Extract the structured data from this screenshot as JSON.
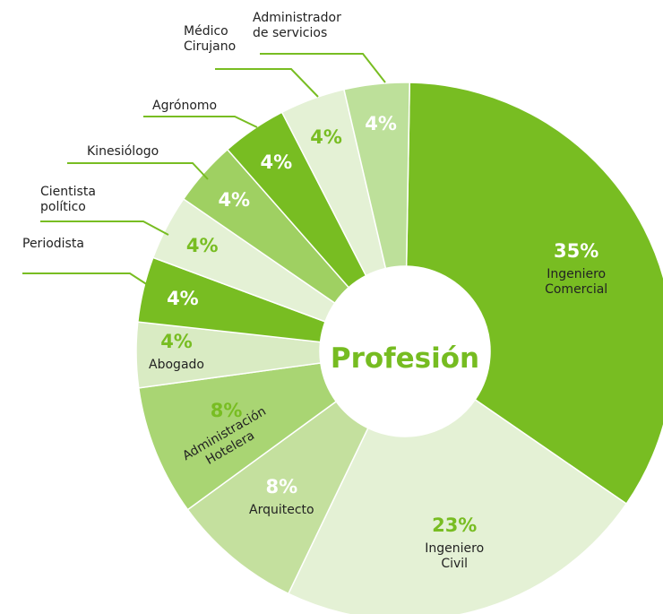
{
  "chart_data": {
    "type": "pie",
    "title": "Profesión",
    "categories": [
      "Ingeniero Comercial",
      "Ingeniero Civil",
      "Arquitecto",
      "Administración Hotelera",
      "Abogado",
      "Periodista",
      "Cientista político",
      "Kinesiólogo",
      "Agrónomo",
      "Médico Cirujano",
      "Administrador de servicios"
    ],
    "values": [
      35,
      23,
      8,
      8,
      4,
      4,
      4,
      4,
      4,
      4,
      4
    ],
    "value_labels": [
      "35%",
      "23%",
      "8%",
      "8%",
      "4%",
      "4%",
      "4%",
      "4%",
      "4%",
      "4%",
      "4%"
    ],
    "colors": [
      "#78bd22",
      "#e4f1d5",
      "#c4e09e",
      "#a9d573",
      "#d9ebc3",
      "#78bd22",
      "#e4f1d5",
      "#9fd062",
      "#78bd22",
      "#e4f1d5",
      "#bde09a"
    ],
    "label_colors": [
      "#ffffff",
      "#78bd22",
      "#ffffff",
      "#78bd22",
      "#78bd22",
      "#ffffff",
      "#78bd22",
      "#ffffff",
      "#ffffff",
      "#78bd22",
      "#ffffff"
    ]
  }
}
